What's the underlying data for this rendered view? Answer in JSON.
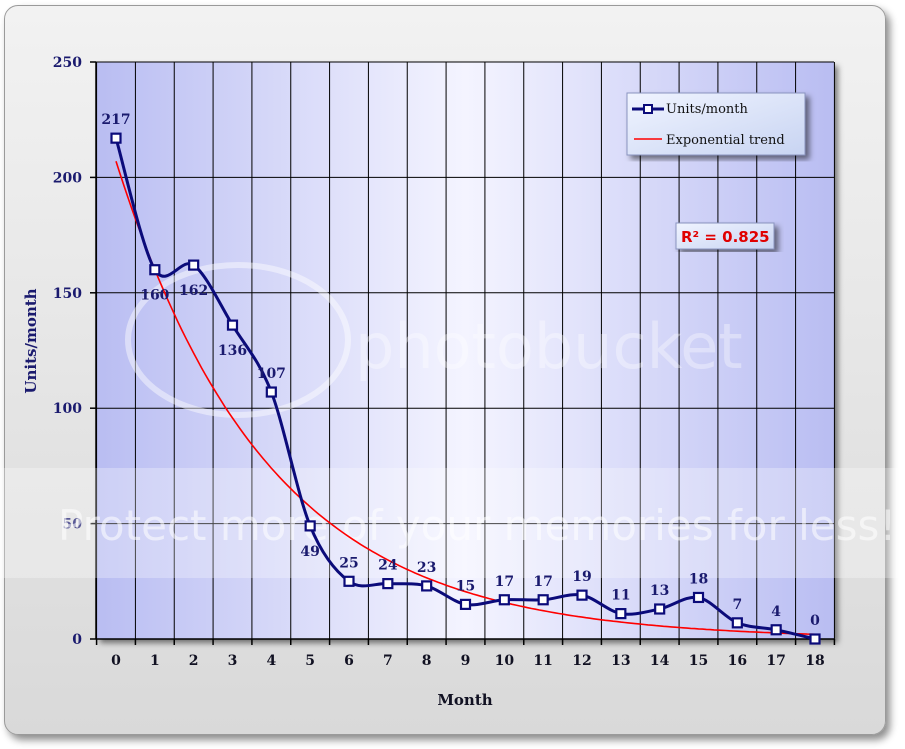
{
  "chart_data": {
    "type": "line",
    "xlabel": "Month",
    "ylabel": "Units/month",
    "xlim": [
      0,
      18
    ],
    "ylim": [
      0,
      250
    ],
    "yticks": [
      0,
      50,
      100,
      150,
      200,
      250
    ],
    "x": [
      0,
      1,
      2,
      3,
      4,
      5,
      6,
      7,
      8,
      9,
      10,
      11,
      12,
      13,
      14,
      15,
      16,
      17,
      18
    ],
    "series": [
      {
        "name": "Units/month",
        "color": "#0b0b7a",
        "values": [
          217,
          160,
          162,
          136,
          107,
          49,
          25,
          24,
          23,
          15,
          17,
          17,
          19,
          11,
          13,
          18,
          7,
          4,
          0
        ],
        "labels": [
          "217",
          "160",
          "162",
          "136",
          "107",
          "49",
          "25",
          "24",
          "23",
          "15",
          "17",
          "17",
          "19",
          "11",
          "13",
          "18",
          "7",
          "4",
          "0"
        ]
      },
      {
        "name": "Exponential trend",
        "color": "#ff0000",
        "trend": {
          "a": 207,
          "k": 0.257
        }
      }
    ],
    "annotation": "R² = 0.825",
    "grid": true,
    "legend": "top-right"
  },
  "watermark": {
    "brand": "photobucket",
    "tagline": "Protect more of your memories for less!"
  }
}
